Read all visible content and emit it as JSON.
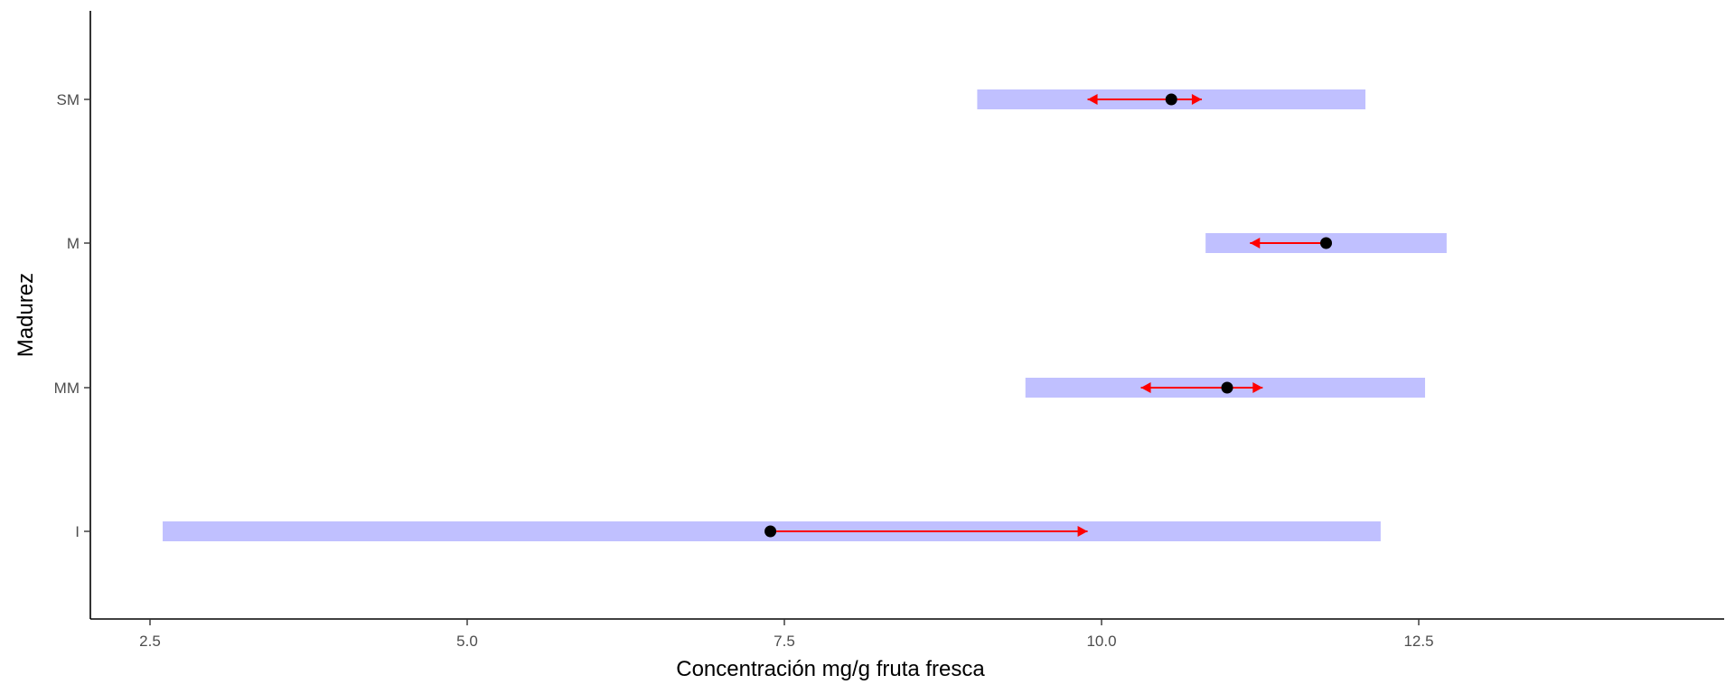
{
  "chart_data": {
    "type": "range-arrow",
    "title": "",
    "xlabel": "Concentración mg/g fruta fresca",
    "ylabel": "Madurez",
    "xlim": [
      2.5,
      12.5
    ],
    "xticks": [
      "2.5",
      "5.0",
      "7.5",
      "10.0",
      "12.5"
    ],
    "categories": [
      "I",
      "MM",
      "M",
      "SM"
    ],
    "series": [
      {
        "kind": "interval",
        "color": "#c0c0ff",
        "values": [
          [
            2.6,
            12.2
          ],
          [
            9.4,
            12.55
          ],
          [
            10.82,
            12.72
          ],
          [
            9.02,
            12.08
          ]
        ]
      },
      {
        "kind": "point",
        "color": "#000000",
        "values": [
          7.39,
          10.99,
          11.77,
          10.55
        ]
      },
      {
        "kind": "arrow",
        "color": "#ff0000",
        "values": [
          {
            "from": 7.39,
            "to": 9.89,
            "double": false
          },
          {
            "from": 10.31,
            "to": 11.27,
            "double": true
          },
          {
            "from": 11.77,
            "to": 11.17,
            "double": false
          },
          {
            "from": 9.89,
            "to": 10.79,
            "double": true
          }
        ]
      }
    ],
    "grid": false,
    "legend": "none"
  }
}
